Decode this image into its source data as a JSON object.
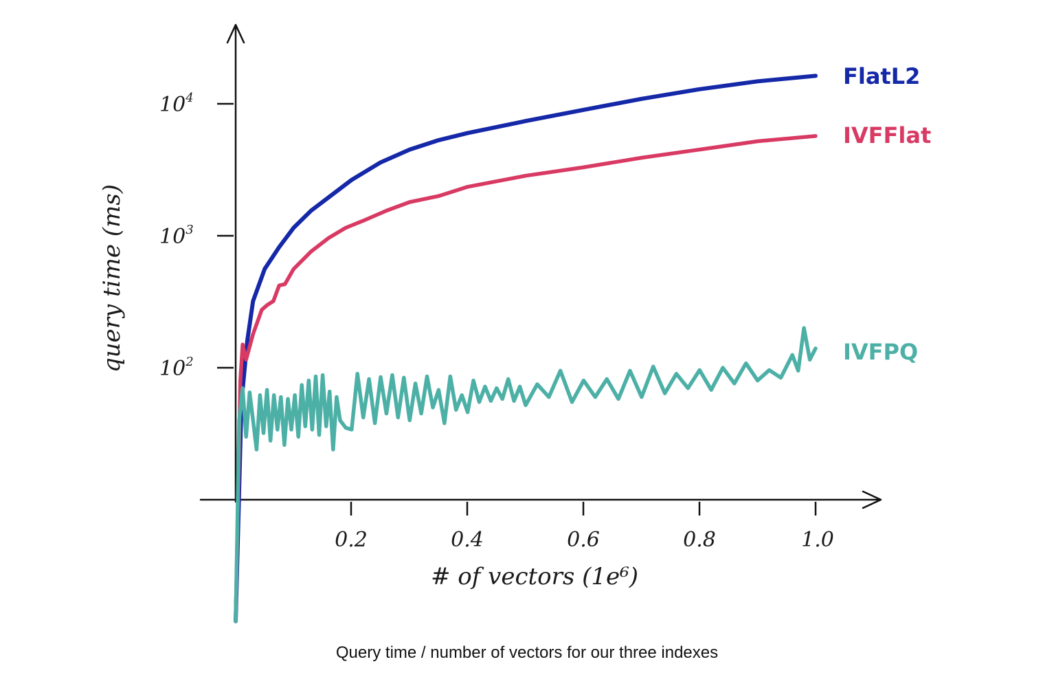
{
  "caption": "Query time / number of vectors for our three indexes",
  "chart_data": {
    "type": "line",
    "xlabel": "# of vectors (1e⁶)",
    "ylabel": "query time (ms)",
    "x_ticks": [
      "0.2",
      "0.4",
      "0.6",
      "0.8",
      "1.0"
    ],
    "y_ticks": [
      {
        "base": "10",
        "exp": "2"
      },
      {
        "base": "10",
        "exp": "3"
      },
      {
        "base": "10",
        "exp": "4"
      }
    ],
    "y_scale": "log",
    "xlim": [
      0,
      1.0
    ],
    "grid": false,
    "legend": "inline-right",
    "series": [
      {
        "name": "FlatL2",
        "color": "#1428a8",
        "points": [
          [
            0,
            1.2
          ],
          [
            0.01,
            55
          ],
          [
            0.02,
            160
          ],
          [
            0.03,
            320
          ],
          [
            0.05,
            560
          ],
          [
            0.075,
            820
          ],
          [
            0.1,
            1150
          ],
          [
            0.13,
            1550
          ],
          [
            0.16,
            1950
          ],
          [
            0.2,
            2650
          ],
          [
            0.25,
            3600
          ],
          [
            0.3,
            4500
          ],
          [
            0.35,
            5300
          ],
          [
            0.4,
            6000
          ],
          [
            0.5,
            7400
          ],
          [
            0.6,
            9000
          ],
          [
            0.7,
            10900
          ],
          [
            0.8,
            12900
          ],
          [
            0.9,
            14800
          ],
          [
            1.0,
            16300
          ]
        ]
      },
      {
        "name": "IVFFlat",
        "color": "#d83a64",
        "points": [
          [
            0,
            1.2
          ],
          [
            0.008,
            80
          ],
          [
            0.012,
            150
          ],
          [
            0.018,
            115
          ],
          [
            0.03,
            180
          ],
          [
            0.045,
            275
          ],
          [
            0.055,
            300
          ],
          [
            0.065,
            320
          ],
          [
            0.075,
            420
          ],
          [
            0.085,
            430
          ],
          [
            0.1,
            560
          ],
          [
            0.13,
            760
          ],
          [
            0.16,
            960
          ],
          [
            0.19,
            1150
          ],
          [
            0.22,
            1300
          ],
          [
            0.26,
            1550
          ],
          [
            0.3,
            1800
          ],
          [
            0.35,
            2000
          ],
          [
            0.4,
            2350
          ],
          [
            0.5,
            2850
          ],
          [
            0.6,
            3300
          ],
          [
            0.7,
            3900
          ],
          [
            0.8,
            4500
          ],
          [
            0.9,
            5200
          ],
          [
            1.0,
            5700
          ]
        ]
      },
      {
        "name": "IVFPQ",
        "color": "#4cb0a6",
        "points": [
          [
            0,
            1.2
          ],
          [
            0.006,
            40
          ],
          [
            0.012,
            70
          ],
          [
            0.018,
            30
          ],
          [
            0.024,
            65
          ],
          [
            0.03,
            40
          ],
          [
            0.036,
            24
          ],
          [
            0.042,
            62
          ],
          [
            0.048,
            32
          ],
          [
            0.054,
            68
          ],
          [
            0.06,
            28
          ],
          [
            0.066,
            62
          ],
          [
            0.072,
            34
          ],
          [
            0.078,
            60
          ],
          [
            0.084,
            26
          ],
          [
            0.09,
            58
          ],
          [
            0.096,
            34
          ],
          [
            0.102,
            62
          ],
          [
            0.108,
            30
          ],
          [
            0.114,
            74
          ],
          [
            0.12,
            36
          ],
          [
            0.126,
            80
          ],
          [
            0.132,
            34
          ],
          [
            0.138,
            86
          ],
          [
            0.144,
            31
          ],
          [
            0.15,
            88
          ],
          [
            0.156,
            36
          ],
          [
            0.162,
            66
          ],
          [
            0.168,
            24
          ],
          [
            0.174,
            60
          ],
          [
            0.18,
            40
          ],
          [
            0.19,
            35
          ],
          [
            0.2,
            34
          ],
          [
            0.21,
            90
          ],
          [
            0.22,
            42
          ],
          [
            0.23,
            82
          ],
          [
            0.24,
            38
          ],
          [
            0.25,
            85
          ],
          [
            0.26,
            45
          ],
          [
            0.27,
            88
          ],
          [
            0.28,
            42
          ],
          [
            0.29,
            84
          ],
          [
            0.3,
            40
          ],
          [
            0.31,
            76
          ],
          [
            0.32,
            45
          ],
          [
            0.33,
            86
          ],
          [
            0.34,
            50
          ],
          [
            0.35,
            68
          ],
          [
            0.36,
            38
          ],
          [
            0.37,
            86
          ],
          [
            0.38,
            48
          ],
          [
            0.39,
            62
          ],
          [
            0.4,
            46
          ],
          [
            0.41,
            80
          ],
          [
            0.42,
            55
          ],
          [
            0.43,
            72
          ],
          [
            0.44,
            56
          ],
          [
            0.45,
            70
          ],
          [
            0.46,
            58
          ],
          [
            0.47,
            82
          ],
          [
            0.48,
            56
          ],
          [
            0.49,
            72
          ],
          [
            0.5,
            52
          ],
          [
            0.52,
            75
          ],
          [
            0.54,
            60
          ],
          [
            0.56,
            95
          ],
          [
            0.58,
            55
          ],
          [
            0.6,
            80
          ],
          [
            0.62,
            60
          ],
          [
            0.64,
            82
          ],
          [
            0.66,
            58
          ],
          [
            0.68,
            95
          ],
          [
            0.7,
            60
          ],
          [
            0.72,
            102
          ],
          [
            0.74,
            64
          ],
          [
            0.76,
            90
          ],
          [
            0.78,
            70
          ],
          [
            0.8,
            96
          ],
          [
            0.82,
            68
          ],
          [
            0.84,
            100
          ],
          [
            0.86,
            76
          ],
          [
            0.88,
            108
          ],
          [
            0.9,
            80
          ],
          [
            0.92,
            96
          ],
          [
            0.94,
            84
          ],
          [
            0.96,
            125
          ],
          [
            0.97,
            95
          ],
          [
            0.98,
            200
          ],
          [
            0.99,
            115
          ],
          [
            1.0,
            140
          ]
        ]
      }
    ]
  }
}
